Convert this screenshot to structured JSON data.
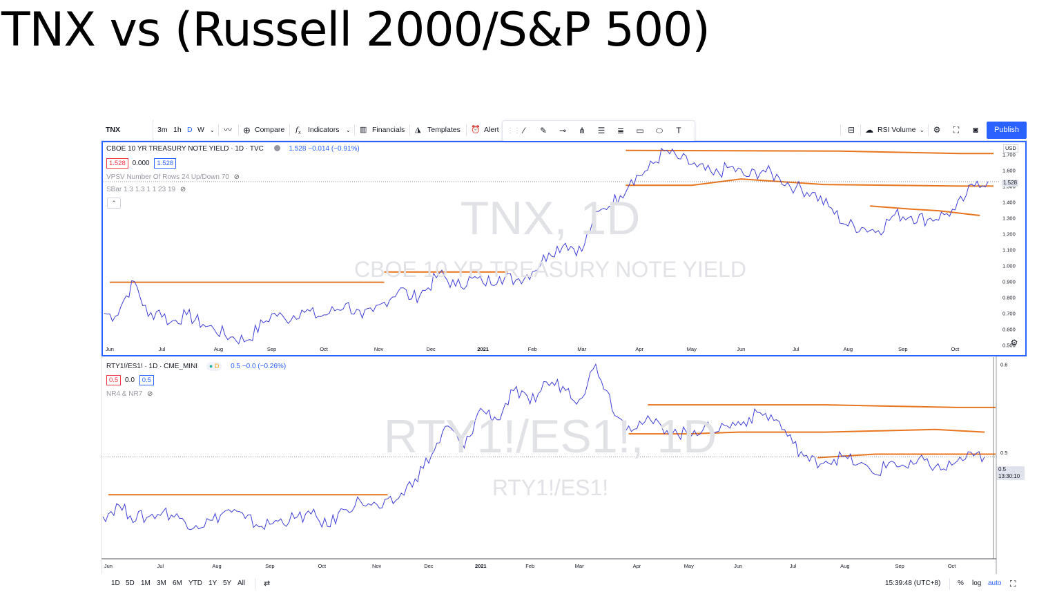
{
  "slide_title": "TNX vs (Russell 2000/S&P 500)",
  "toolbar": {
    "symbol": "TNX",
    "intervals": [
      "3m",
      "1h",
      "D",
      "W"
    ],
    "active_interval": "D",
    "compare": "Compare",
    "indicators": "Indicators",
    "financials": "Financials",
    "templates": "Templates",
    "alert": "Alert",
    "rsi_volume": "RSI Volume",
    "publish": "Publish"
  },
  "pane1": {
    "title": "CBOE 10 YR TREASURY NOTE YIELD · 1D · TVC",
    "quote": "1.528  −0.014 (−0.91%)",
    "bid": "1.528",
    "spread": "0.000",
    "ask": "1.528",
    "indicator1": "VPSV Number Of Rows 24 Up/Down 70",
    "indicator2": "SBar 1.3 1.3 1 1 23 19",
    "watermark_symbol": "TNX, 1D",
    "watermark_name": "CBOE 10 YR TREASURY NOTE YIELD",
    "currency": "USD",
    "last_price_label": "1.528"
  },
  "pane2": {
    "title": "RTY1!/ES1! · 1D · CME_MINI",
    "quote": "0.5  −0.0 (−0.26%)",
    "bid": "0.5",
    "spread": "0.0",
    "ask": "0.5",
    "indicator1": "NR4 & NR7",
    "watermark_symbol": "RTY1!/ES1!, 1D",
    "watermark_name": "RTY1!/ES1!",
    "last_price_label": "0.5",
    "countdown": "13:30:10"
  },
  "bottombar": {
    "ranges": [
      "1D",
      "5D",
      "1M",
      "3M",
      "6M",
      "YTD",
      "1Y",
      "5Y",
      "All"
    ],
    "time": "15:39:48 (UTC+8)",
    "percent": "%",
    "log": "log",
    "auto": "auto"
  },
  "chart_data": [
    {
      "type": "line",
      "title": "CBOE 10 YR TREASURY NOTE YIELD · 1D · TVC",
      "series_color": "#3f3fd8",
      "line_color_annotations": "#e8741e",
      "x_tick_labels": [
        "Jun",
        "Jul",
        "Aug",
        "Sep",
        "Oct",
        "Nov",
        "Dec",
        "2021",
        "Feb",
        "Mar",
        "Apr",
        "May",
        "Jun",
        "Jul",
        "Aug",
        "Sep",
        "Oct"
      ],
      "y_tick_labels": [
        "0.500",
        "0.600",
        "0.700",
        "0.800",
        "0.900",
        "1.000",
        "1.100",
        "1.200",
        "1.300",
        "1.400",
        "1.500",
        "1.600",
        "1.700"
      ],
      "ylim": [
        0.45,
        1.78
      ],
      "x_months": [
        0,
        16.3
      ],
      "x": [
        0,
        0.2,
        0.4,
        0.55,
        0.8,
        1,
        1.2,
        1.5,
        1.8,
        2,
        2.3,
        2.6,
        2.9,
        3.1,
        3.3,
        3.6,
        3.9,
        4.1,
        4.4,
        4.7,
        4.9,
        5.1,
        5.4,
        5.6,
        5.9,
        6.1,
        6.4,
        6.7,
        6.9,
        7.2,
        7.5,
        7.8,
        8.1,
        8.4,
        8.7,
        8.9,
        9.1,
        9.4,
        9.6,
        9.9,
        10.2,
        10.5,
        10.8,
        11.1,
        11.4,
        11.7,
        12,
        12.3,
        12.6,
        12.9,
        13.2,
        13.5,
        13.8,
        14.1,
        14.4,
        14.7,
        15,
        15.3,
        15.5,
        15.7,
        15.9,
        16.1
      ],
      "values": [
        0.7,
        0.68,
        0.81,
        0.9,
        0.68,
        0.72,
        0.64,
        0.69,
        0.63,
        0.6,
        0.55,
        0.53,
        0.64,
        0.7,
        0.66,
        0.72,
        0.68,
        0.7,
        0.76,
        0.67,
        0.71,
        0.77,
        0.86,
        0.79,
        0.86,
        0.95,
        0.87,
        0.92,
        0.89,
        0.93,
        0.91,
        0.96,
        1.08,
        1.14,
        1.09,
        1.28,
        1.36,
        1.44,
        1.54,
        1.6,
        1.72,
        1.67,
        1.62,
        1.57,
        1.62,
        1.56,
        1.6,
        1.55,
        1.49,
        1.46,
        1.37,
        1.26,
        1.24,
        1.22,
        1.32,
        1.31,
        1.29,
        1.32,
        1.35,
        1.44,
        1.53,
        1.528
      ],
      "annotation_lines": [
        {
          "x": [
            0.1,
            5.1
          ],
          "values": [
            0.895,
            0.895
          ]
        },
        {
          "x": [
            5.1,
            7.35
          ],
          "values": [
            0.96,
            0.96
          ]
        },
        {
          "x": [
            9.5,
            13.4,
            15.6,
            16.2
          ],
          "values": [
            1.725,
            1.72,
            1.705,
            1.705
          ]
        },
        {
          "x": [
            9.5,
            10.7,
            11.6,
            13.1,
            15.6,
            16.2
          ],
          "values": [
            1.505,
            1.505,
            1.545,
            1.51,
            1.5,
            1.5
          ]
        },
        {
          "x": [
            13.95,
            14.7,
            15.2,
            15.95
          ],
          "values": [
            1.375,
            1.355,
            1.345,
            1.315
          ]
        }
      ]
    },
    {
      "type": "line",
      "title": "RTY1!/ES1! · 1D · CME_MINI",
      "series_color": "#3f3fd8",
      "x_tick_labels": [
        "Jun",
        "Jul",
        "Aug",
        "Sep",
        "Oct",
        "Nov",
        "Dec",
        "2021",
        "Feb",
        "Mar",
        "Apr",
        "May",
        "Jun",
        "Jul",
        "Aug",
        "Sep",
        "Oct"
      ],
      "y_tick_labels": [
        "0.6",
        "0.5"
      ],
      "ylim": [
        0.38,
        0.605
      ],
      "x_months": [
        0,
        16.3
      ],
      "x": [
        0,
        0.3,
        0.5,
        0.8,
        1.1,
        1.4,
        1.7,
        2,
        2.3,
        2.6,
        2.9,
        3.2,
        3.5,
        3.8,
        4.1,
        4.4,
        4.7,
        4.9,
        5.1,
        5.4,
        5.7,
        6,
        6.3,
        6.6,
        6.9,
        7.2,
        7.5,
        7.8,
        8.1,
        8.4,
        8.7,
        9,
        9.2,
        9.4,
        9.6,
        9.9,
        10.2,
        10.5,
        10.8,
        11.1,
        11.4,
        11.7,
        12,
        12.3,
        12.6,
        12.9,
        13.2,
        13.5,
        13.8,
        14.1,
        14.4,
        14.7,
        15,
        15.3,
        15.6,
        15.9,
        16.1
      ],
      "values": [
        0.427,
        0.44,
        0.428,
        0.426,
        0.433,
        0.425,
        0.417,
        0.423,
        0.435,
        0.425,
        0.416,
        0.422,
        0.425,
        0.43,
        0.416,
        0.435,
        0.445,
        0.44,
        0.437,
        0.448,
        0.47,
        0.497,
        0.53,
        0.505,
        0.55,
        0.537,
        0.57,
        0.555,
        0.58,
        0.575,
        0.56,
        0.6,
        0.57,
        0.54,
        0.53,
        0.535,
        0.53,
        0.52,
        0.525,
        0.527,
        0.53,
        0.535,
        0.545,
        0.537,
        0.51,
        0.49,
        0.49,
        0.495,
        0.487,
        0.475,
        0.49,
        0.482,
        0.491,
        0.48,
        0.49,
        0.496,
        0.495
      ],
      "annotation_lines": [
        {
          "x": [
            0.1,
            5.2
          ],
          "values": [
            0.452,
            0.452
          ]
        },
        {
          "x": [
            9.95,
            13.2,
            15.6,
            16.3
          ],
          "values": [
            0.554,
            0.554,
            0.551,
            0.551
          ]
        },
        {
          "x": [
            9.6,
            10.7,
            11.6,
            13.2,
            15.2,
            16.1
          ],
          "values": [
            0.521,
            0.521,
            0.523,
            0.523,
            0.526,
            0.523
          ]
        },
        {
          "x": [
            13.05,
            14.1,
            16.3
          ],
          "values": [
            0.494,
            0.498,
            0.498
          ]
        }
      ]
    }
  ]
}
